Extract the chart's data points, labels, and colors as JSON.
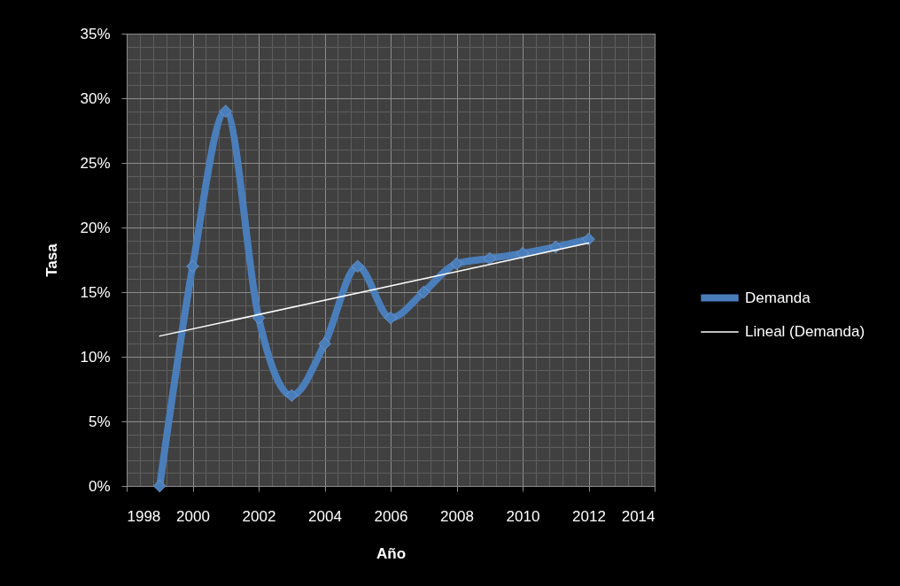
{
  "chart_data": {
    "type": "line",
    "xlabel": "Año",
    "ylabel": "Tasa",
    "xlim": [
      1998,
      2014
    ],
    "xticks": [
      1998,
      2000,
      2002,
      2004,
      2006,
      2008,
      2010,
      2012,
      2014
    ],
    "ylim": [
      0,
      35
    ],
    "yticks": [
      {
        "value": 0,
        "label": "0%"
      },
      {
        "value": 5,
        "label": "5%"
      },
      {
        "value": 10,
        "label": "10%"
      },
      {
        "value": 15,
        "label": "15%"
      },
      {
        "value": 20,
        "label": "20%"
      },
      {
        "value": 25,
        "label": "25%"
      },
      {
        "value": 30,
        "label": "30%"
      },
      {
        "value": 35,
        "label": "35%"
      }
    ],
    "grid": true,
    "legend": "right",
    "marker": "diamond",
    "series": [
      {
        "name": "Demanda",
        "color": "#4a7ebb",
        "x": [
          1999,
          2000,
          2001,
          2002,
          2003,
          2004,
          2005,
          2006,
          2007,
          2008,
          2009,
          2010,
          2011,
          2012
        ],
        "values": [
          0,
          17,
          29,
          13,
          7,
          11,
          17,
          13,
          15,
          17.2,
          17.6,
          18,
          18.5,
          19.1
        ]
      },
      {
        "name": "Lineal (Demanda)",
        "type": "line",
        "marker": "none",
        "color": "#ffffff",
        "x": [
          1999,
          2012
        ],
        "values": [
          11.6,
          18.8
        ]
      }
    ]
  }
}
